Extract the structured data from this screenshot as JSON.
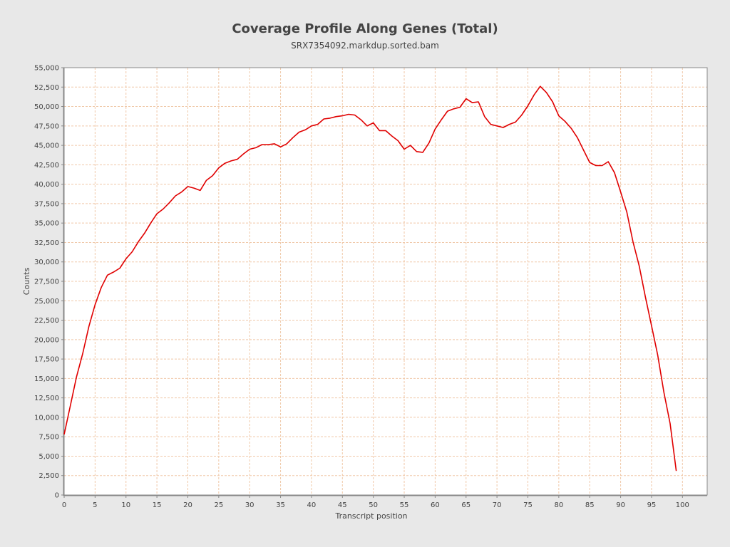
{
  "chart_data": {
    "type": "line",
    "title": "Coverage Profile Along Genes (Total)",
    "subtitle": "SRX7354092.markdup.sorted.bam",
    "xlabel": "Transcript position",
    "ylabel": "Counts",
    "xlim": [
      0,
      104
    ],
    "ylim": [
      0,
      55000
    ],
    "x_ticks": [
      0,
      5,
      10,
      15,
      20,
      25,
      30,
      35,
      40,
      45,
      50,
      55,
      60,
      65,
      70,
      75,
      80,
      85,
      90,
      95,
      100
    ],
    "y_ticks": [
      0,
      2500,
      5000,
      7500,
      10000,
      12500,
      15000,
      17500,
      20000,
      22500,
      25000,
      27500,
      30000,
      32500,
      35000,
      37500,
      40000,
      42500,
      45000,
      47500,
      50000,
      52500,
      55000
    ],
    "y_tick_labels": [
      "0",
      "2,500",
      "5,000",
      "7,500",
      "10,000",
      "12,500",
      "15,000",
      "17,500",
      "20,000",
      "22,500",
      "25,000",
      "27,500",
      "30,000",
      "32,500",
      "35,000",
      "37,500",
      "40,000",
      "42,500",
      "45,000",
      "47,500",
      "50,000",
      "52,500",
      "55,000"
    ],
    "grid": true,
    "series": [
      {
        "color": "#e00000",
        "x": [
          0,
          1,
          2,
          3,
          4,
          5,
          6,
          7,
          8,
          9,
          10,
          11,
          12,
          13,
          14,
          15,
          16,
          17,
          18,
          19,
          20,
          21,
          22,
          23,
          24,
          25,
          26,
          27,
          28,
          29,
          30,
          31,
          32,
          33,
          34,
          35,
          36,
          37,
          38,
          39,
          40,
          41,
          42,
          43,
          44,
          45,
          46,
          47,
          48,
          49,
          50,
          51,
          52,
          53,
          54,
          55,
          56,
          57,
          58,
          59,
          60,
          61,
          62,
          63,
          64,
          65,
          66,
          67,
          68,
          69,
          70,
          71,
          72,
          73,
          74,
          75,
          76,
          77,
          78,
          79,
          80,
          81,
          82,
          83,
          84,
          85,
          86,
          87,
          88,
          89,
          90,
          91,
          92,
          93,
          94,
          95,
          96,
          97,
          98,
          99
        ],
        "values": [
          7800,
          11500,
          15200,
          18200,
          21700,
          24500,
          26700,
          28300,
          28700,
          29200,
          30400,
          31300,
          32600,
          33700,
          35000,
          36200,
          36800,
          37600,
          38500,
          39000,
          39700,
          39500,
          39200,
          40500,
          41100,
          42100,
          42700,
          43000,
          43200,
          43900,
          44500,
          44700,
          45100,
          45100,
          45200,
          44800,
          45200,
          46000,
          46700,
          47000,
          47500,
          47700,
          48400,
          48500,
          48700,
          48800,
          49000,
          48900,
          48300,
          47500,
          47900,
          46900,
          46900,
          46200,
          45600,
          44500,
          45000,
          44200,
          44100,
          45300,
          47100,
          48300,
          49400,
          49700,
          49900,
          51000,
          50500,
          50600,
          48700,
          47700,
          47500,
          47300,
          47700,
          48000,
          48900,
          50100,
          51500,
          52600,
          51800,
          50600,
          48800,
          48100,
          47200,
          46000,
          44400,
          42800,
          42400,
          42400,
          42900,
          41500,
          39000,
          36400,
          32600,
          29500,
          25500,
          21800,
          18000,
          13200,
          9200,
          3100
        ]
      }
    ]
  },
  "colors": {
    "background": "#e8e8e8",
    "plot_background": "#ffffff",
    "grid": "#f0c8a8",
    "line": "#e00000",
    "text": "#444444"
  }
}
